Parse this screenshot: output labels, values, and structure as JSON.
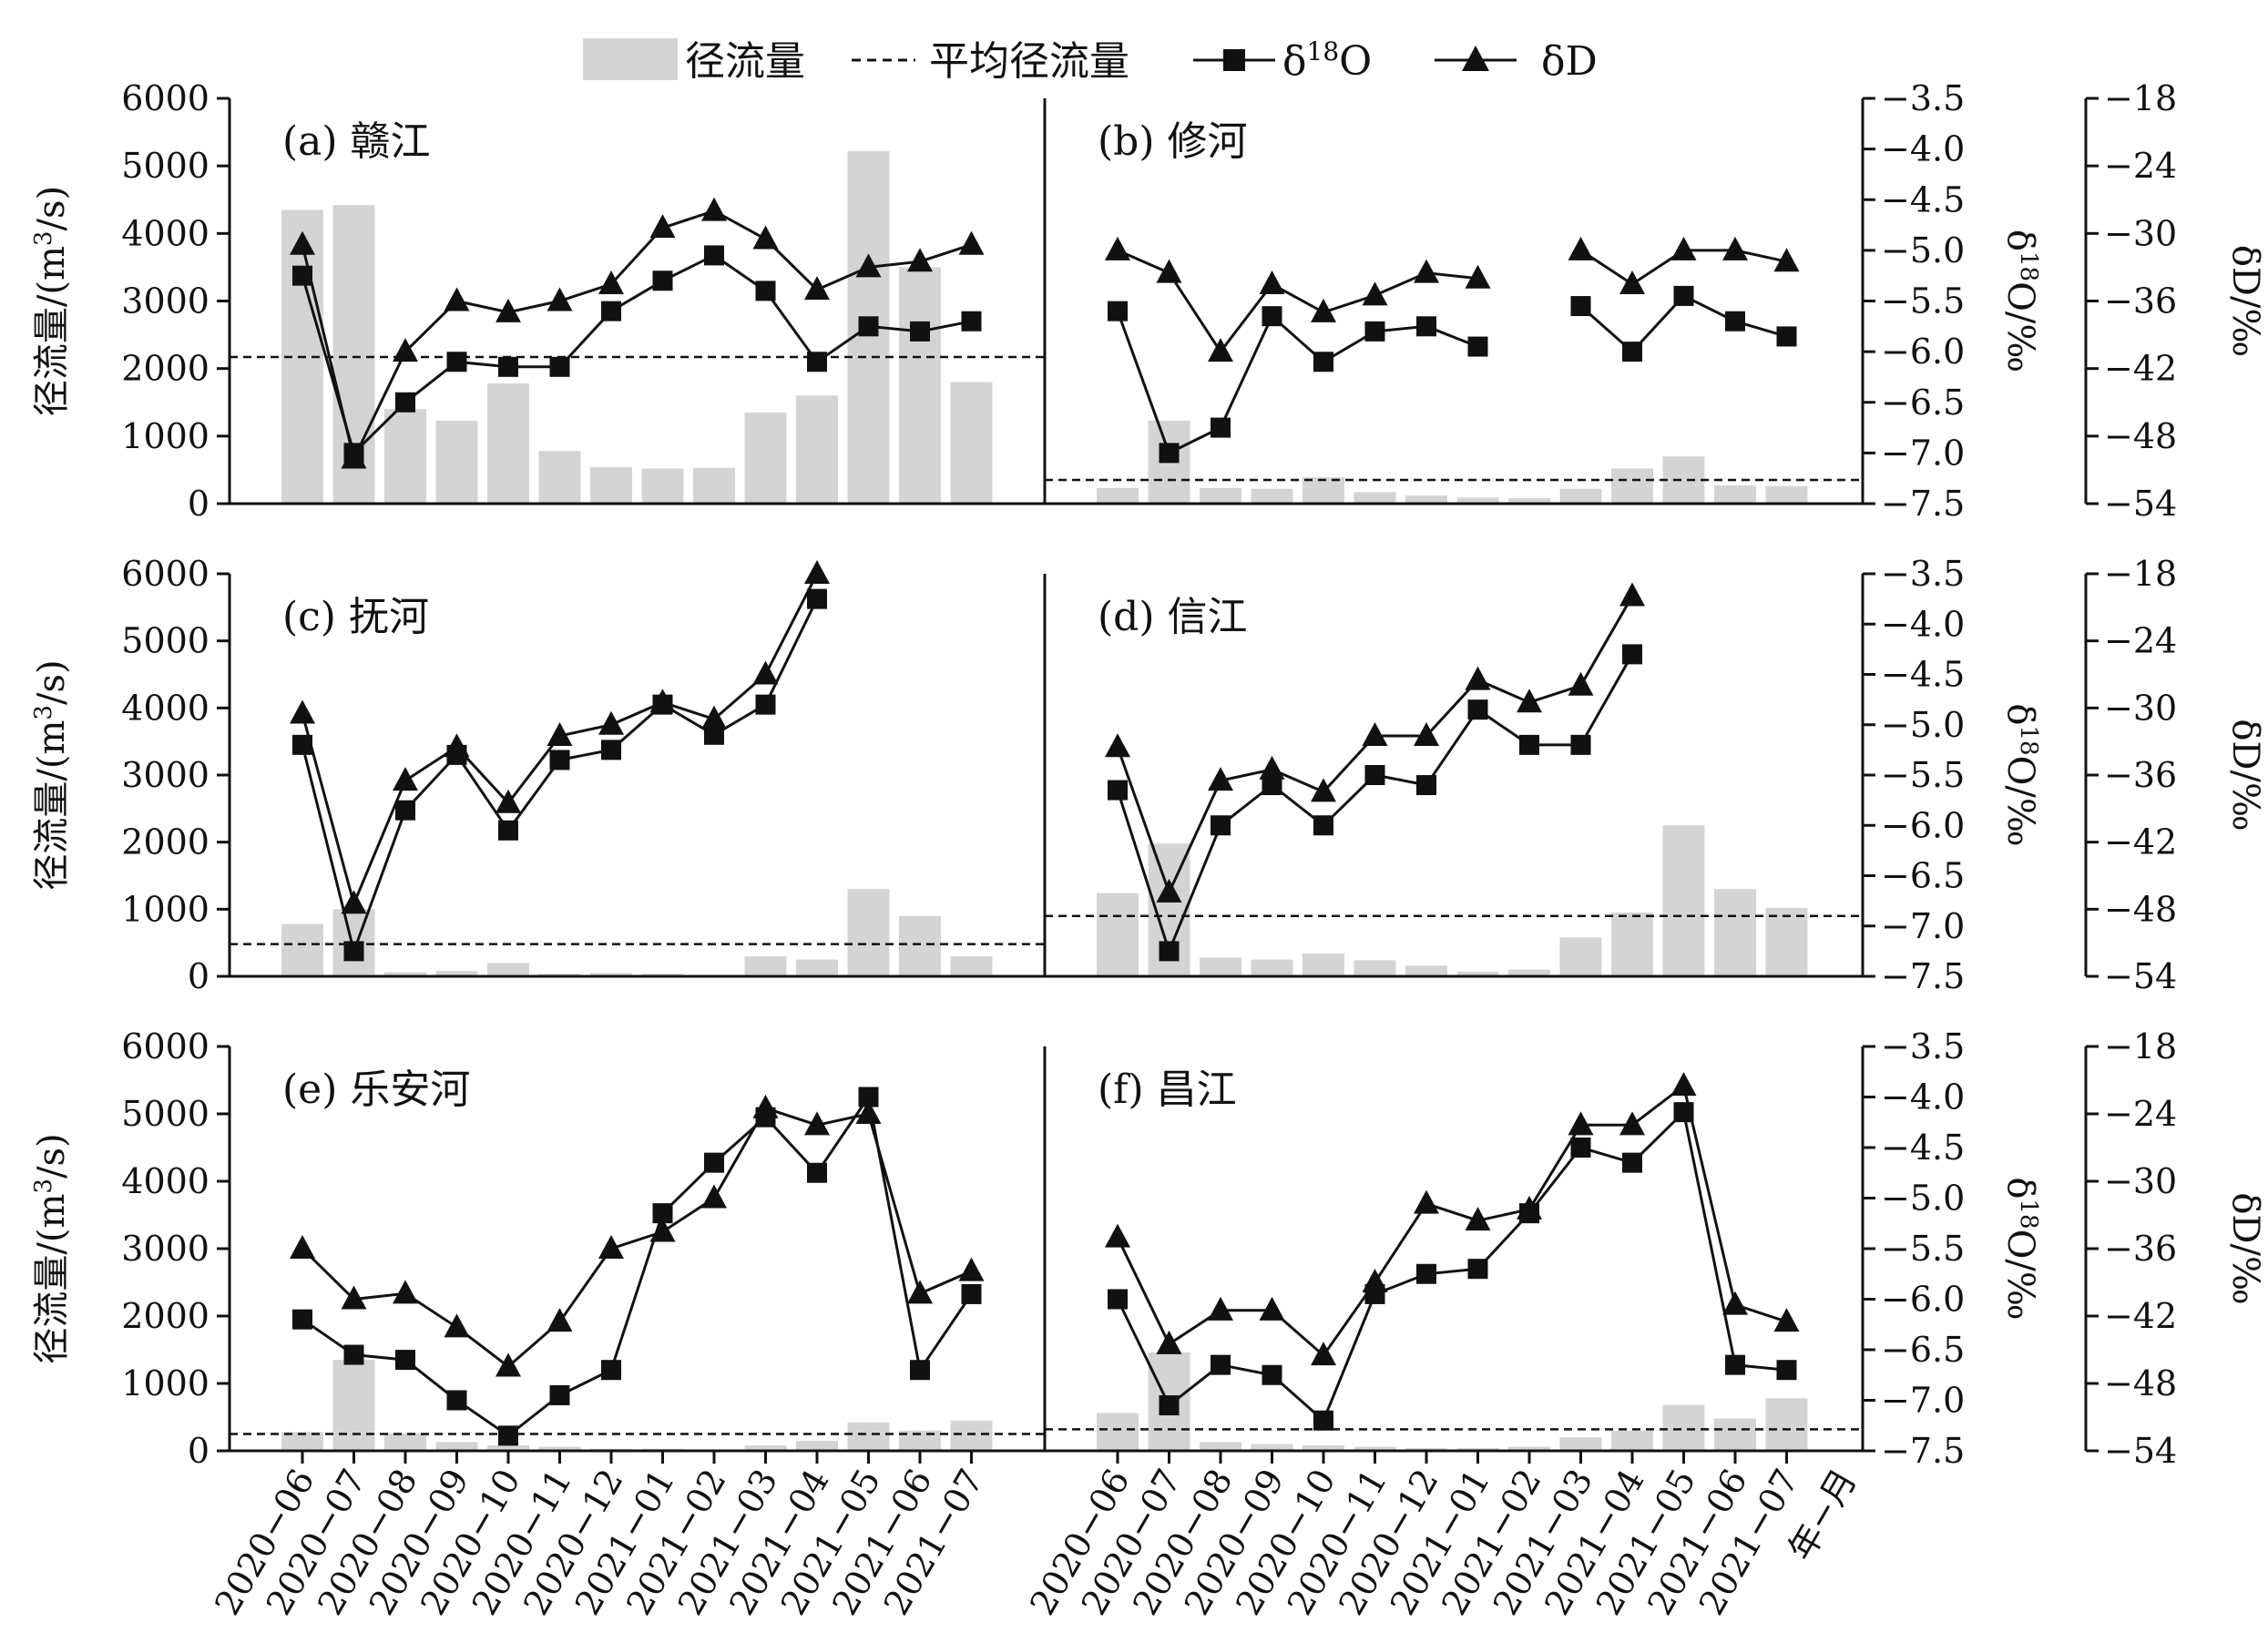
{
  "legend": {
    "runoff": "径流量",
    "mean_runoff": "平均径流量",
    "d18o_prefix": "δ",
    "d18o_sup": "18",
    "d18o_suffix": "O",
    "dd": "δD"
  },
  "axes": {
    "left_title_main": "径流量/(m",
    "left_title_sup": "3",
    "left_title_end": "/s)",
    "o_title_prefix": "δ",
    "o_title_sup": "18",
    "o_title_end": "O/‰",
    "d_title": "δD/‰",
    "month_unit": "年−月"
  },
  "colors": {
    "bar": "#d4d4d4",
    "line": "#111111",
    "axis": "#111111"
  },
  "chart_data": {
    "type": "bar",
    "categories": [
      "2020−06",
      "2020−07",
      "2020−08",
      "2020−09",
      "2020−10",
      "2020−11",
      "2020−12",
      "2021−01",
      "2021−02",
      "2021−03",
      "2021−04",
      "2021−05",
      "2021−06",
      "2021−07"
    ],
    "runoff_axis": {
      "ylim": [
        0,
        6000
      ],
      "ticks": [
        "0",
        "1000",
        "2000",
        "3000",
        "4000",
        "5000",
        "6000"
      ]
    },
    "d18o_axis": {
      "ylim": [
        -7.5,
        -3.5
      ],
      "ticks": [
        "−7.5",
        "−7.0",
        "−6.5",
        "−6.0",
        "−5.5",
        "−5.0",
        "−4.5",
        "−4.0",
        "−3.5"
      ]
    },
    "dd_axis": {
      "ylim": [
        -54,
        -18
      ],
      "ticks": [
        "−54",
        "−48",
        "−42",
        "−36",
        "−30",
        "−24",
        "−18"
      ]
    },
    "panels": [
      {
        "label": "(a) 赣江",
        "runoff": [
          4350,
          4420,
          1400,
          1230,
          1780,
          780,
          540,
          520,
          530,
          1350,
          1600,
          5220,
          3500,
          1800
        ],
        "mean_runoff": 2170,
        "d18o": [
          -5.25,
          -7.0,
          -6.5,
          -6.1,
          -6.15,
          -6.15,
          -5.6,
          -5.3,
          -5.05,
          -5.4,
          -6.1,
          -5.75,
          -5.8,
          -5.7
        ],
        "dd": [
          -31,
          -50,
          -40.5,
          -36,
          -37,
          -36,
          -34.5,
          -29.5,
          -28,
          -30.5,
          -35,
          -33,
          -32.5,
          -31
        ]
      },
      {
        "label": "(b) 修河",
        "runoff": [
          230,
          1230,
          230,
          220,
          390,
          170,
          120,
          90,
          80,
          220,
          520,
          700,
          270,
          260
        ],
        "mean_runoff": 350,
        "d18o": [
          -5.6,
          -7.0,
          -6.75,
          -5.65,
          -6.1,
          -5.8,
          -5.75,
          -5.95,
          null,
          -5.55,
          -6.0,
          -5.45,
          -5.7,
          -5.85
        ],
        "dd": [
          -31.5,
          -33.5,
          -40.5,
          -34.5,
          -37,
          -35.5,
          -33.5,
          -34,
          null,
          -31.5,
          -34.5,
          -31.5,
          -31.5,
          -32.5
        ]
      },
      {
        "label": "(c) 抚河",
        "runoff": [
          780,
          1000,
          60,
          80,
          200,
          40,
          50,
          40,
          20,
          300,
          250,
          1300,
          900,
          300
        ],
        "mean_runoff": 480,
        "d18o": [
          -5.2,
          -7.25,
          -5.85,
          -5.3,
          -6.05,
          -5.35,
          -5.25,
          -4.8,
          -5.1,
          -4.8,
          -3.75,
          null,
          null,
          null
        ],
        "dd": [
          -30.5,
          -47.5,
          -36.5,
          -33.5,
          -38.5,
          -32.5,
          -31.5,
          -29.5,
          -31,
          -27,
          -18,
          null,
          null,
          null
        ]
      },
      {
        "label": "(d) 信江",
        "runoff": [
          1240,
          1980,
          280,
          250,
          340,
          240,
          160,
          70,
          100,
          580,
          950,
          2250,
          1300,
          1020
        ],
        "mean_runoff": 900,
        "d18o": [
          -5.65,
          -7.25,
          -6.0,
          -5.6,
          -6.0,
          -5.5,
          -5.6,
          -4.85,
          -5.2,
          -5.2,
          -4.3,
          null,
          null,
          null
        ],
        "dd": [
          -33.5,
          -46.5,
          -36.5,
          -35.5,
          -37.5,
          -32.5,
          -32.5,
          -27.5,
          -29.5,
          -28,
          -20,
          null,
          null,
          null
        ]
      },
      {
        "label": "(e) 乐安河",
        "runoff": [
          280,
          1350,
          260,
          130,
          80,
          60,
          30,
          30,
          20,
          80,
          150,
          420,
          300,
          450
        ],
        "mean_runoff": 250,
        "d18o": [
          -6.2,
          -6.55,
          -6.6,
          -7.0,
          -7.35,
          -6.95,
          -6.7,
          -5.15,
          -4.65,
          -4.2,
          -4.75,
          -4.0,
          -6.7,
          -5.95
        ],
        "dd": [
          -36,
          -40.5,
          -40,
          -43,
          -46.5,
          -42.5,
          -36,
          -34.5,
          -31.5,
          -23.5,
          -25,
          -24,
          -40,
          -38
        ]
      },
      {
        "label": "(f) 昌江",
        "runoff": [
          560,
          1460,
          130,
          100,
          80,
          60,
          40,
          40,
          60,
          200,
          300,
          680,
          480,
          780
        ],
        "mean_runoff": 320,
        "d18o": [
          -6.0,
          -7.05,
          -6.65,
          -6.75,
          -7.2,
          -5.95,
          -5.75,
          -5.7,
          -5.15,
          -4.5,
          -4.65,
          -4.15,
          -6.65,
          -6.7
        ],
        "dd": [
          -35,
          -44.5,
          -41.5,
          -41.5,
          -45.5,
          -39,
          -32,
          -33.5,
          -32.5,
          -25,
          -25,
          -21.5,
          -41,
          -42.5
        ]
      }
    ]
  }
}
